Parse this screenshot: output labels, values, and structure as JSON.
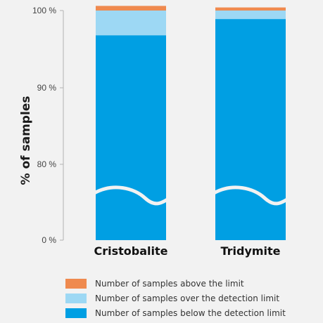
{
  "chart_data": {
    "type": "bar",
    "stacked": true,
    "categories": [
      "Cristobalite",
      "Tridymite"
    ],
    "ylabel": "% of samples",
    "y_ticks": [
      "0 %",
      "80 %",
      "90 %",
      "100 %"
    ],
    "axis_break": "between 0 % and 80 %",
    "series": [
      {
        "name": "Number of samples below the detection limit",
        "values": [
          96.8,
          98.9
        ],
        "color": "#009fe3"
      },
      {
        "name": "Number of samples over the detection limit",
        "values": [
          3.2,
          1.1
        ],
        "color": "#9dd8f4"
      },
      {
        "name": "Number of samples above the limit",
        "values": [
          0.6,
          0.4
        ],
        "color": "#ef8a4f"
      }
    ],
    "legend_position": "bottom",
    "grid": false
  }
}
